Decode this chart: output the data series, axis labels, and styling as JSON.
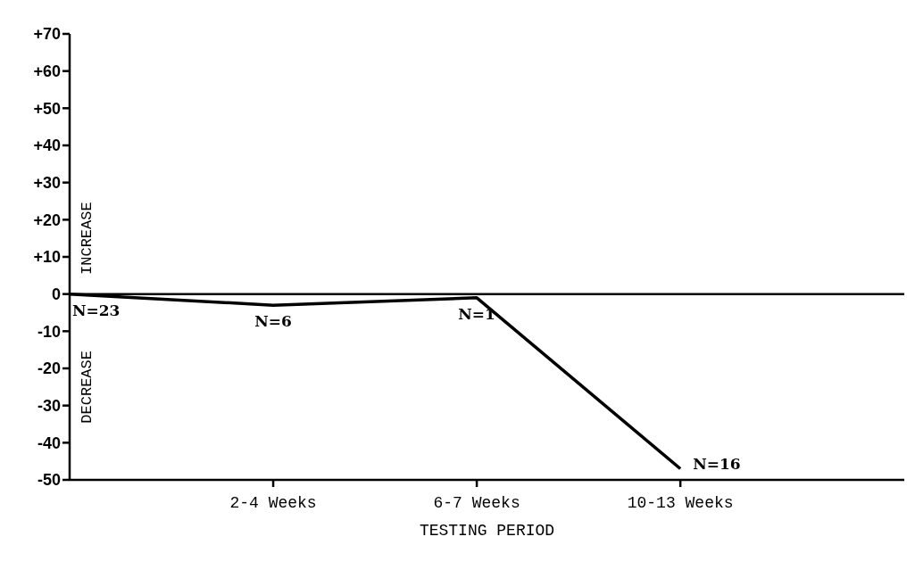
{
  "chart_data": {
    "type": "line",
    "xlabel": "TESTING PERIOD",
    "categories": [
      null,
      "2-4 Weeks",
      "6-7 Weeks",
      "10-13 Weeks"
    ],
    "values": [
      0,
      -3,
      -1,
      -47
    ],
    "color": "#000000",
    "marker": "none",
    "line_style": "solid",
    "grid": false,
    "legend": false,
    "ylim": [
      -50,
      70
    ],
    "yticks": [
      {
        "value": 70,
        "label": "+70"
      },
      {
        "value": 60,
        "label": "+60"
      },
      {
        "value": 50,
        "label": "+50"
      },
      {
        "value": 40,
        "label": "+40"
      },
      {
        "value": 30,
        "label": "+30"
      },
      {
        "value": 20,
        "label": "+20"
      },
      {
        "value": 10,
        "label": "+10"
      },
      0,
      -10,
      -20,
      -30,
      -40,
      -50
    ],
    "ref_lines": [
      {
        "axis": "y",
        "value": 0,
        "label": null,
        "color": "#000000"
      }
    ],
    "annotations": [
      "INCREASE",
      "DECREASE",
      {
        "text": "N=23",
        "y": 0
      },
      {
        "text": "N=6",
        "x": "2-4 Weeks",
        "y": -3
      },
      {
        "text": "N=1",
        "x": "6-7 Weeks",
        "y": -1
      },
      {
        "text": "N=16",
        "x": "10-13 Weeks",
        "y": -47
      }
    ]
  }
}
